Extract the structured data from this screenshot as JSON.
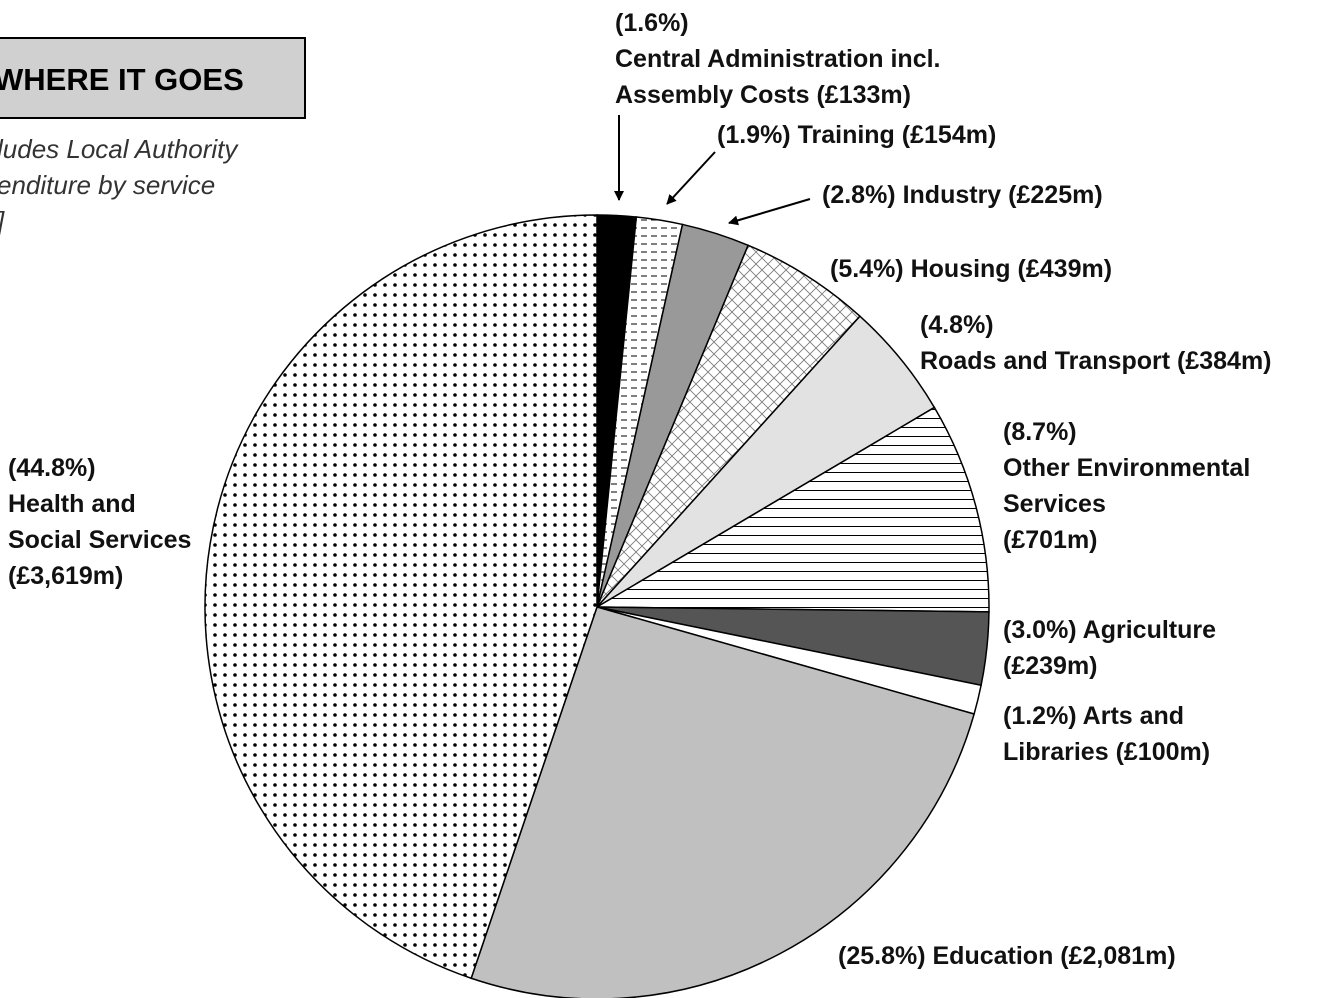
{
  "chart_data": {
    "type": "pie",
    "title": "WHERE IT GOES",
    "subtitle": [
      "ludes Local Authority",
      "enditure by service",
      "]"
    ],
    "categories": [
      "Central Administration incl. Assembly Costs",
      "Training",
      "Industry",
      "Housing",
      "Roads and Transport",
      "Other Environmental Services",
      "Agriculture",
      "Arts and Libraries",
      "Education",
      "Health and Social Services"
    ],
    "values": [
      1.6,
      1.9,
      2.8,
      5.4,
      4.8,
      8.7,
      3.0,
      1.2,
      25.8,
      44.8
    ],
    "value_labels": [
      "(1.6%)",
      "(1.9%)",
      "(2.8%)",
      "(5.4%)",
      "(4.8%)",
      "(8.7%)",
      "(3.0%)",
      "(1.2%)",
      "(25.8%)",
      "(44.8%)"
    ],
    "amounts": [
      133,
      154,
      225,
      439,
      384,
      701,
      239,
      100,
      2081,
      3619
    ],
    "amount_labels": [
      "(£133m)",
      "(£154m)",
      "(£225m)",
      "(£439m)",
      "(£384m)",
      "(£701m)",
      "(£239m)",
      "(£100m)",
      "(£2,081m)",
      "(£3,619m)"
    ],
    "colors": [
      "#000000",
      "#ffffff",
      "#999999",
      "#ffffff",
      "#e2e2e2",
      "#ffffff",
      "#555555",
      "#ffffff",
      "#c0c0c0",
      "#ffffff"
    ],
    "patterns": [
      null,
      "dashes",
      null,
      "crosshatch",
      null,
      "hlines",
      null,
      null,
      null,
      "dots"
    ]
  }
}
